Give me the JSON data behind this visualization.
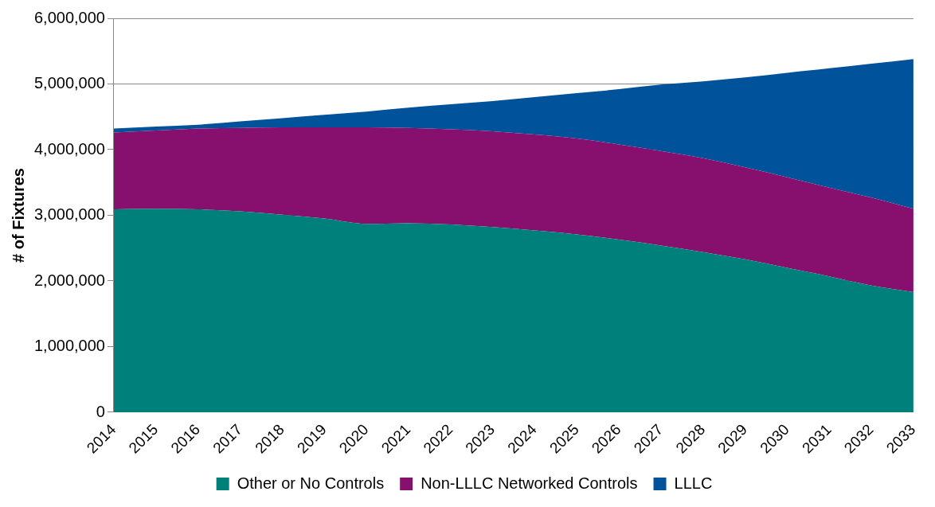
{
  "chart_data": {
    "type": "area",
    "stacked": true,
    "ylabel": "# of Fixtures",
    "categories": [
      "2014",
      "2015",
      "2016",
      "2017",
      "2018",
      "2019",
      "2020",
      "2021",
      "2022",
      "2023",
      "2024",
      "2025",
      "2026",
      "2027",
      "2028",
      "2029",
      "2030",
      "2031",
      "2032",
      "2033"
    ],
    "series": [
      {
        "name": "Other or No Controls",
        "color": "#00807a",
        "values": [
          3090000,
          3100000,
          3090000,
          3060000,
          3010000,
          2950000,
          2870000,
          2880000,
          2860000,
          2820000,
          2770000,
          2710000,
          2630000,
          2540000,
          2440000,
          2330000,
          2200000,
          2070000,
          1930000,
          1830000
        ]
      },
      {
        "name": "Non-LLLC Networked Controls",
        "color": "#87106e",
        "values": [
          1170000,
          1190000,
          1230000,
          1270000,
          1330000,
          1390000,
          1470000,
          1450000,
          1450000,
          1460000,
          1460000,
          1460000,
          1450000,
          1440000,
          1430000,
          1400000,
          1380000,
          1350000,
          1340000,
          1270000
        ]
      },
      {
        "name": "LLLC",
        "color": "#00529b",
        "values": [
          60000,
          60000,
          60000,
          100000,
          140000,
          190000,
          240000,
          310000,
          380000,
          460000,
          570000,
          690000,
          840000,
          1010000,
          1170000,
          1370000,
          1590000,
          1820000,
          2040000,
          2280000
        ]
      }
    ],
    "ylim": [
      0,
      6000000
    ],
    "yticks": [
      0,
      {
        "value": 1000000,
        "label": "1,000,000"
      },
      {
        "value": 2000000,
        "label": "2,000,000"
      },
      {
        "value": 3000000,
        "label": "3,000,000"
      },
      {
        "value": 4000000,
        "label": "4,000,000"
      },
      {
        "value": 5000000,
        "label": "5,000,000"
      },
      {
        "value": 6000000,
        "label": "6,000,000"
      }
    ],
    "grid": "y",
    "legend": "bottom"
  }
}
